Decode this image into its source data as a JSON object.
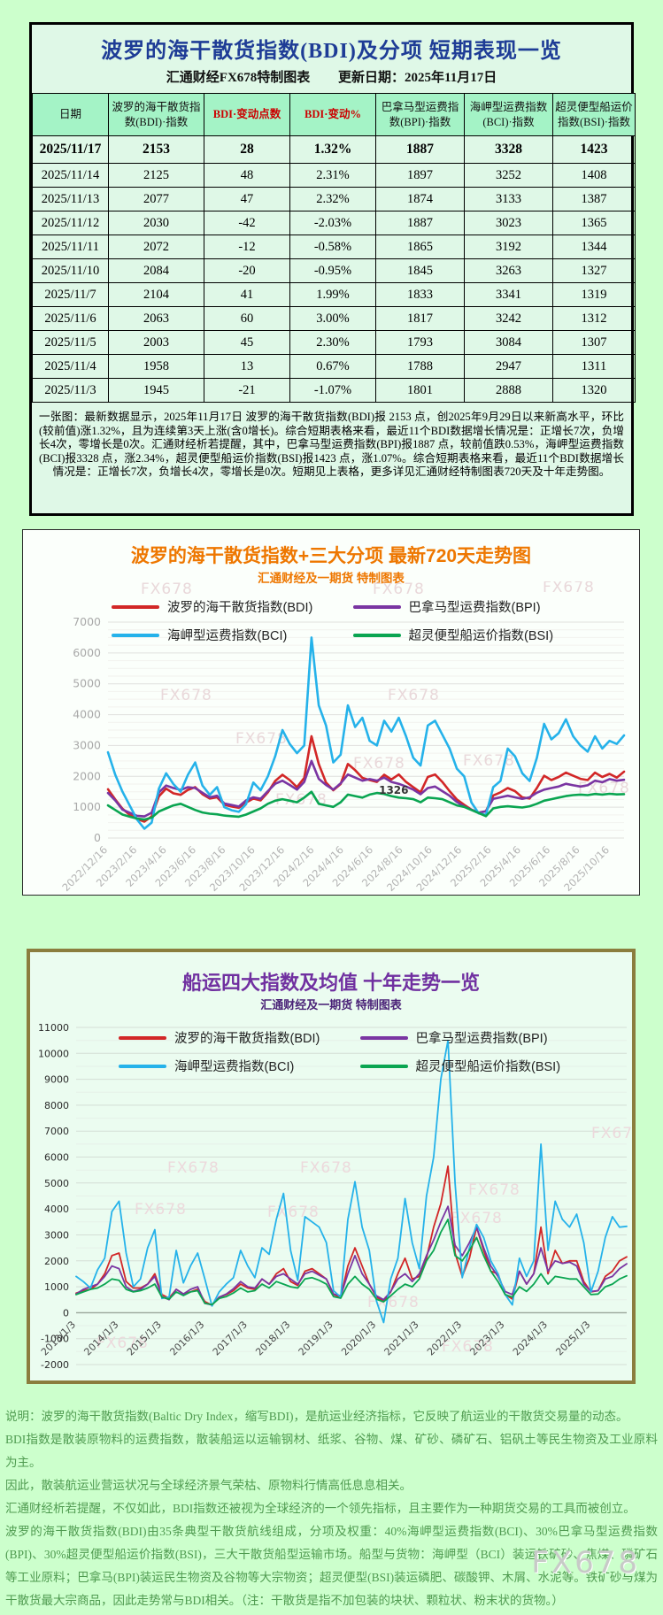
{
  "page": {
    "watermark": "FX678"
  },
  "colors": {
    "page_bg": "#ccffcc",
    "panel_bg": "#dff8e7",
    "header_bg": "#a4f3c6",
    "title_navy": "#1e3c96",
    "orange": "#ee7700",
    "purple_title": "#7030a0",
    "green_text": "#4f9b50",
    "red_accent": "#cc0000",
    "series_bdi": "#d22727",
    "series_bpi": "#7a35a2",
    "series_bci": "#25b2ea",
    "series_bsi": "#0aa551"
  },
  "table_panel": {
    "title": "波罗的海干散货指数(BDI)及分项 短期表现一览",
    "subtitle_left": "汇通财经FX678特制图表",
    "subtitle_right": "更新日期：2025年11月17日",
    "columns": [
      "日期",
      "波罗的海干散货指数(BDI)·指数",
      "BDI·变动点数",
      "BDI·变动%",
      "巴拿马型运费指数(BPI)·指数",
      "海岬型运费指数(BCI)·指数",
      "超灵便型船运价指数(BSI)·指数"
    ],
    "red_columns": [
      2,
      3
    ],
    "rows": [
      [
        "2025/11/17",
        "2153",
        "28",
        "1.32%",
        "1887",
        "3328",
        "1423"
      ],
      [
        "2025/11/14",
        "2125",
        "48",
        "2.31%",
        "1897",
        "3252",
        "1408"
      ],
      [
        "2025/11/13",
        "2077",
        "47",
        "2.32%",
        "1874",
        "3133",
        "1387"
      ],
      [
        "2025/11/12",
        "2030",
        "-42",
        "-2.03%",
        "1887",
        "3023",
        "1365"
      ],
      [
        "2025/11/11",
        "2072",
        "-12",
        "-0.58%",
        "1865",
        "3192",
        "1344"
      ],
      [
        "2025/11/10",
        "2084",
        "-20",
        "-0.95%",
        "1845",
        "3263",
        "1327"
      ],
      [
        "2025/11/7",
        "2104",
        "41",
        "1.99%",
        "1833",
        "3341",
        "1319"
      ],
      [
        "2025/11/6",
        "2063",
        "60",
        "3.00%",
        "1817",
        "3242",
        "1312"
      ],
      [
        "2025/11/5",
        "2003",
        "45",
        "2.30%",
        "1793",
        "3084",
        "1307"
      ],
      [
        "2025/11/4",
        "1958",
        "13",
        "0.67%",
        "1788",
        "2947",
        "1311"
      ],
      [
        "2025/11/3",
        "1945",
        "-21",
        "-1.07%",
        "1801",
        "2888",
        "1320"
      ]
    ],
    "note": "一张图：最新数据显示，2025年11月17日 波罗的海干散货指数(BDI)报 2153 点，创2025年9月29日以来新高水平，环比(较前值)涨1.32%，且为连续第3天上涨(含0增长)。综合短期表格来看，最近11个BDI数据增长情况是：正增长7次，负增长4次，零增长是0次。汇通财经析若提醒，其中，巴拿马型运费指数(BPI)报1887 点，较前值跌0.53%，海岬型运费指数(BCI)报3328 点，涨2.34%，超灵便型船运价指数(BSI)报1423 点，涨1.07%。综合短期表格来看，最近11个BDI数据增长情况是：正增长7次，负增长4次，零增长是0次。短期见上表格，更多详见汇通财经特制图表720天及十年走势图。"
  },
  "chart_data": [
    {
      "id": "chart720",
      "type": "line",
      "title": "波罗的海干散货指数+三大分项  最新720天走势图",
      "subtitle": "汇通财经及一期货  特制图表",
      "ylim": [
        0,
        7000
      ],
      "ytick_major": 1000,
      "ytick_minor": 250,
      "grid": true,
      "legend_position": "top-inside",
      "xlabel": "",
      "ylabel": "",
      "xtick_step_frac": 0.0572,
      "x_labels": [
        "2022/12/16",
        "2023/2/16",
        "2023/4/16",
        "2023/6/16",
        "2023/8/16",
        "2023/10/16",
        "2023/12/16",
        "2024/2/16",
        "2024/4/16",
        "2024/6/16",
        "2024/8/16",
        "2024/10/16",
        "2024/12/16",
        "2025/2/16",
        "2025/4/16",
        "2025/6/16",
        "2025/8/16",
        "2025/10/16"
      ],
      "series": [
        {
          "name": "波罗的海干散货指数(BDI)",
          "color": "#d22727",
          "values": [
            1580,
            1250,
            950,
            750,
            620,
            530,
            700,
            1350,
            1600,
            1450,
            1400,
            1560,
            1650,
            1420,
            1280,
            1320,
            1080,
            1020,
            980,
            1150,
            1280,
            1220,
            1480,
            1850,
            2050,
            1880,
            1650,
            1950,
            3300,
            2400,
            1800,
            1550,
            1750,
            2400,
            2200,
            1950,
            1880,
            1820,
            2050,
            1900,
            2060,
            1820,
            1650,
            1480,
            1980,
            2060,
            1820,
            1520,
            1250,
            1080,
            920,
            820,
            870,
            1380,
            1480,
            1620,
            1520,
            1320,
            1280,
            1620,
            2020,
            1880,
            1980,
            2120,
            2020,
            1920,
            1880,
            2120,
            1980,
            2080,
            1960,
            2153
          ]
        },
        {
          "name": "巴拿马型运费指数(BPI)",
          "color": "#7a35a2",
          "values": [
            1460,
            1220,
            920,
            820,
            720,
            700,
            820,
            1480,
            1700,
            1620,
            1560,
            1650,
            1620,
            1470,
            1320,
            1370,
            1120,
            1070,
            1020,
            1220,
            1320,
            1270,
            1520,
            1760,
            1860,
            1720,
            1570,
            1820,
            2500,
            1920,
            1720,
            1570,
            1770,
            2060,
            1960,
            1860,
            1910,
            1860,
            1960,
            1820,
            1760,
            1670,
            1570,
            1420,
            1620,
            1670,
            1520,
            1370,
            1170,
            1020,
            920,
            820,
            870,
            1270,
            1320,
            1370,
            1320,
            1270,
            1320,
            1470,
            1570,
            1620,
            1670,
            1760,
            1710,
            1670,
            1710,
            1860,
            1810,
            1910,
            1860,
            1887
          ]
        },
        {
          "name": "海岬型运费指数(BCI)",
          "color": "#25b2ea",
          "values": [
            2780,
            2050,
            1500,
            1050,
            600,
            300,
            500,
            1600,
            2100,
            1750,
            1500,
            2050,
            2450,
            1700,
            1400,
            1650,
            1000,
            900,
            850,
            1100,
            1800,
            1550,
            2000,
            2650,
            3500,
            3050,
            2750,
            3000,
            6500,
            4300,
            3650,
            2450,
            2700,
            4300,
            3600,
            3900,
            3150,
            3000,
            3800,
            3450,
            3900,
            3300,
            2600,
            2350,
            3650,
            3800,
            3350,
            2900,
            2250,
            2000,
            1150,
            800,
            750,
            1650,
            1850,
            2900,
            2650,
            2100,
            1850,
            2600,
            3700,
            3200,
            3400,
            3850,
            3300,
            3000,
            2800,
            3300,
            2900,
            3150,
            3050,
            3328
          ]
        },
        {
          "name": "超灵便型船运价指数(BSI)",
          "color": "#0aa551",
          "values": [
            1060,
            910,
            760,
            690,
            630,
            600,
            660,
            860,
            960,
            1060,
            1110,
            1010,
            910,
            830,
            790,
            770,
            730,
            710,
            690,
            760,
            860,
            960,
            1110,
            1210,
            1260,
            1210,
            1160,
            1310,
            1500,
            1110,
            1060,
            1010,
            1160,
            1410,
            1360,
            1310,
            1410,
            1460,
            1430,
            1360,
            1310,
            1290,
            1260,
            1160,
            1310,
            1290,
            1260,
            1160,
            1060,
            1010,
            910,
            810,
            710,
            960,
            1010,
            1030,
            1010,
            990,
            1030,
            1110,
            1210,
            1260,
            1310,
            1360,
            1390,
            1410,
            1390,
            1430,
            1410,
            1435,
            1415,
            1423
          ]
        }
      ],
      "annotations": [
        {
          "text": "1326",
          "x_frac": 0.525,
          "value": 1430
        }
      ]
    },
    {
      "id": "chart10y",
      "type": "line",
      "title": "船运四大指数及均值 十年走势一览",
      "subtitle": "汇通财经及一期货 特制图表",
      "ylim": [
        -2000,
        11000
      ],
      "ytick_major": 1000,
      "ytick_minor": 500,
      "grid": true,
      "legend_position": "top-inside",
      "xlabel": "",
      "ylabel": "",
      "xlabel_at_value": 0,
      "xtick_step_frac": 0.0779,
      "x_labels": [
        "2013/1/3",
        "2014/1/3",
        "2015/1/3",
        "2016/1/3",
        "2017/1/3",
        "2018/1/3",
        "2019/1/3",
        "2020/1/3",
        "2021/1/3",
        "2022/1/3",
        "2023/1/3",
        "2024/1/3",
        "2025/1/3"
      ],
      "series": [
        {
          "name": "波罗的海干散货指数(BDI)",
          "color": "#d22727",
          "values": [
            750,
            850,
            900,
            1100,
            1500,
            2200,
            2300,
            1200,
            950,
            950,
            1100,
            1500,
            700,
            560,
            900,
            720,
            800,
            900,
            430,
            290,
            600,
            700,
            850,
            1100,
            950,
            900,
            1300,
            1100,
            1500,
            1700,
            1200,
            1050,
            1600,
            1700,
            1500,
            1300,
            700,
            600,
            1800,
            2500,
            1800,
            1100,
            600,
            450,
            800,
            1500,
            2100,
            1300,
            1400,
            2100,
            3300,
            4200,
            5650,
            2300,
            1400,
            2100,
            3300,
            2400,
            1600,
            1500,
            700,
            530,
            1600,
            1100,
            1500,
            3300,
            1500,
            2400,
            1900,
            2000,
            2000,
            1200,
            800,
            850,
            1400,
            1600,
            2000,
            2153
          ]
        },
        {
          "name": "巴拿马型运费指数(BPI)",
          "color": "#7a35a2",
          "values": [
            720,
            900,
            1000,
            1100,
            1400,
            1800,
            1700,
            1000,
            820,
            900,
            1100,
            1400,
            620,
            500,
            900,
            720,
            900,
            1000,
            360,
            300,
            600,
            720,
            920,
            1200,
            1000,
            950,
            1300,
            1100,
            1400,
            1500,
            1300,
            1100,
            1500,
            1600,
            1450,
            1300,
            720,
            650,
            1500,
            2200,
            1500,
            1100,
            650,
            500,
            820,
            1300,
            1500,
            1200,
            1500,
            2200,
            2800,
            3500,
            4100,
            2600,
            2200,
            2700,
            3300,
            2500,
            1800,
            1400,
            820,
            700,
            1600,
            1100,
            1500,
            2500,
            1600,
            2000,
            1900,
            1950,
            1800,
            1100,
            820,
            850,
            1300,
            1400,
            1700,
            1887
          ]
        },
        {
          "name": "海岬型运费指数(BCI)",
          "color": "#25b2ea",
          "values": [
            1400,
            1200,
            950,
            1650,
            2100,
            3900,
            4300,
            2300,
            1000,
            1300,
            2500,
            3200,
            550,
            600,
            2400,
            1150,
            1800,
            2300,
            1300,
            260,
            800,
            1100,
            1350,
            2400,
            1800,
            1350,
            2500,
            2250,
            3600,
            4600,
            2400,
            1250,
            3700,
            3500,
            3300,
            2700,
            850,
            600,
            3600,
            5050,
            3300,
            2400,
            450,
            -380,
            1300,
            2100,
            4400,
            2700,
            1700,
            4500,
            6000,
            9000,
            10500,
            5000,
            1350,
            2500,
            3400,
            2900,
            2000,
            1500,
            700,
            300,
            2100,
            1400,
            2000,
            6500,
            2400,
            4300,
            3600,
            3300,
            3800,
            2700,
            800,
            1600,
            2900,
            3700,
            3300,
            3328
          ]
        },
        {
          "name": "超灵便型船运价指数(BSI)",
          "color": "#0aa551",
          "values": [
            700,
            800,
            900,
            950,
            1100,
            1300,
            1250,
            900,
            800,
            850,
            950,
            1100,
            600,
            520,
            800,
            660,
            800,
            850,
            360,
            310,
            550,
            620,
            760,
            950,
            800,
            850,
            1100,
            950,
            1200,
            1100,
            1000,
            950,
            1300,
            1350,
            1250,
            1100,
            620,
            560,
            1100,
            1400,
            1100,
            900,
            520,
            420,
            650,
            900,
            1100,
            1000,
            1300,
            2000,
            2400,
            3100,
            3600,
            2200,
            2000,
            2400,
            2900,
            2200,
            1600,
            1200,
            700,
            600,
            1000,
            820,
            1100,
            1500,
            1100,
            1400,
            1350,
            1300,
            1300,
            1000,
            700,
            720,
            1000,
            1100,
            1300,
            1423
          ]
        }
      ],
      "annotations": []
    }
  ],
  "footer": {
    "lines": [
      "说明：波罗的海干散货指数(Baltic Dry Index，缩写BDI)，是航运业经济指标，它反映了航运业的干散货交易量的动态。",
      "BDI指数是散装原物料的运费指数，散装船运以运输钢材、纸浆、谷物、煤、矿砂、磷矿石、铝矾土等民生物资及工业原料为主。",
      "因此，散装航运业营运状况与全球经济景气荣枯、原物料行情高低息息相关。",
      "汇通财经析若提醒，不仅如此，BDI指数还被视为全球经济的一个领先指标，且主要作为一种期货交易的工具而被创立。",
      "波罗的海干散货指数(BDI)由35条典型干散货航线组成，分项及权重：40%海岬型运费指数(BCI)、30%巴拿马型运费指数(BPI)、30%超灵便型船运价指数(BSI)，三大干散货船型运输市场。船型与货物：海岬型（BCI）装运铁矿砂、焦煤、磷矿石等工业原料；巴拿马(BPI)装运民生物资及谷物等大宗物资；超灵便型(BSI)装运磷肥、碳酸钾、木屑、水泥等。铁矿砂与煤为干散货最大宗商品，因此走势常与BDI相关。（注：干散货是指不加包装的块状、颗粒状、粉末状的货物。）"
    ]
  }
}
